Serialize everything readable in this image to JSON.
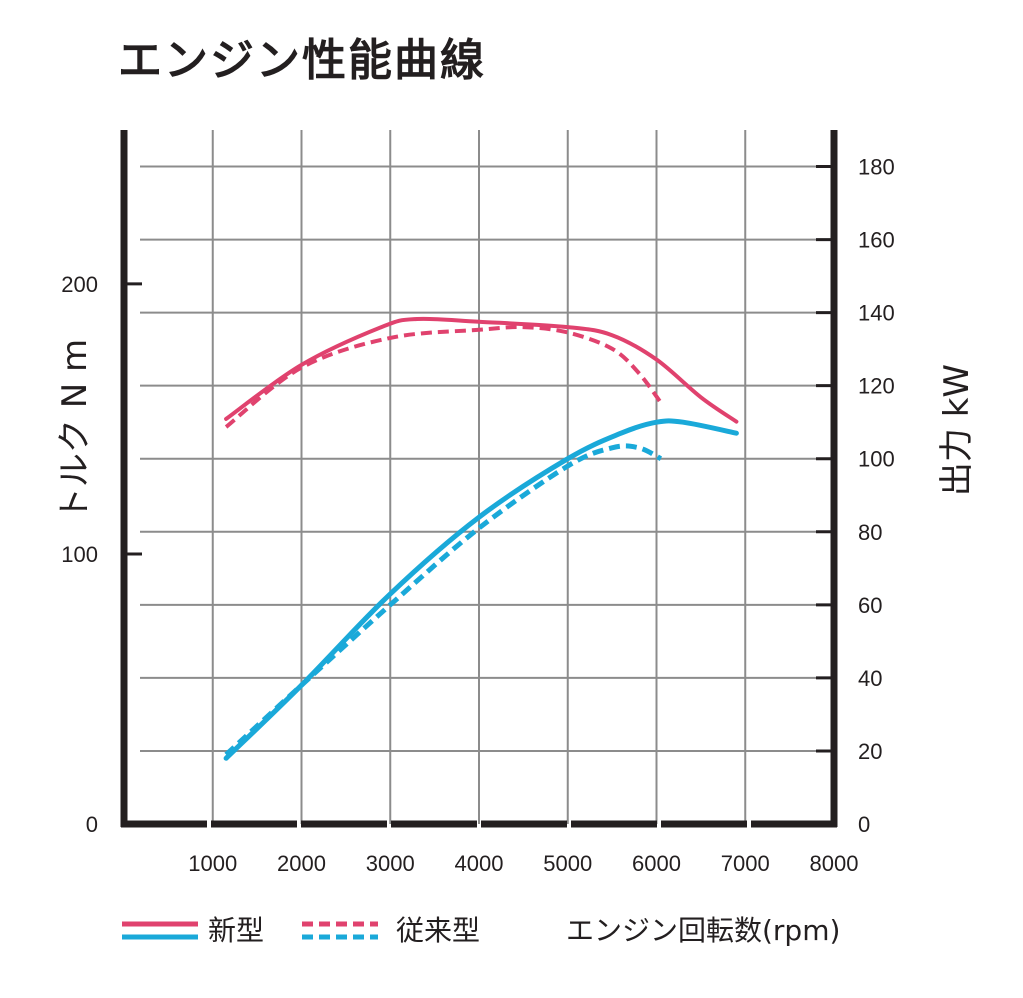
{
  "chart_data": {
    "type": "line",
    "title": "エンジン性能曲線",
    "xlabel": "エンジン回転数(rpm)",
    "y_left_label": "トルク N m",
    "y_right_label": "出力 kW",
    "x_ticks": [
      1000,
      2000,
      3000,
      4000,
      5000,
      6000,
      7000,
      8000
    ],
    "y_left_ticks": [
      0,
      100,
      200
    ],
    "y_right_ticks": [
      0,
      20,
      40,
      60,
      80,
      100,
      120,
      140,
      160,
      180
    ],
    "xlim": [
      0,
      8000
    ],
    "y_left_lim": [
      0,
      257
    ],
    "y_right_lim": [
      0,
      190
    ],
    "grid": true,
    "legend_position": "bottom",
    "legend": {
      "new": "新型",
      "old": "従来型"
    },
    "colors": {
      "torque": "#e0426e",
      "power": "#1aa9d9",
      "axis": "#231f20",
      "grid": "#8c8c8c"
    },
    "series": [
      {
        "name": "新型",
        "quantity": "torque",
        "axis": "left",
        "style": "solid",
        "x": [
          1150,
          2000,
          2900,
          3300,
          4000,
          5000,
          5500,
          6000,
          6500,
          6900
        ],
        "y": [
          150,
          170,
          184,
          187,
          186,
          184,
          181,
          172,
          158,
          149
        ]
      },
      {
        "name": "従来型",
        "quantity": "torque",
        "axis": "left",
        "style": "dashed",
        "x": [
          1150,
          2000,
          3000,
          4000,
          4500,
          5000,
          5500,
          5800,
          6050
        ],
        "y": [
          147,
          169,
          180,
          183,
          184,
          182,
          176,
          167,
          156
        ]
      },
      {
        "name": "新型",
        "quantity": "power",
        "axis": "right",
        "style": "solid",
        "x": [
          1150,
          2000,
          3000,
          4000,
          5000,
          5600,
          6000,
          6300,
          6900
        ],
        "y": [
          18,
          38,
          63,
          84,
          100,
          107,
          110,
          110,
          107
        ]
      },
      {
        "name": "従来型",
        "quantity": "power",
        "axis": "right",
        "style": "dashed",
        "x": [
          1150,
          2000,
          3000,
          4000,
          5000,
          5500,
          5800,
          6050
        ],
        "y": [
          19,
          38,
          60,
          81,
          98,
          103,
          103,
          100
        ]
      }
    ]
  }
}
